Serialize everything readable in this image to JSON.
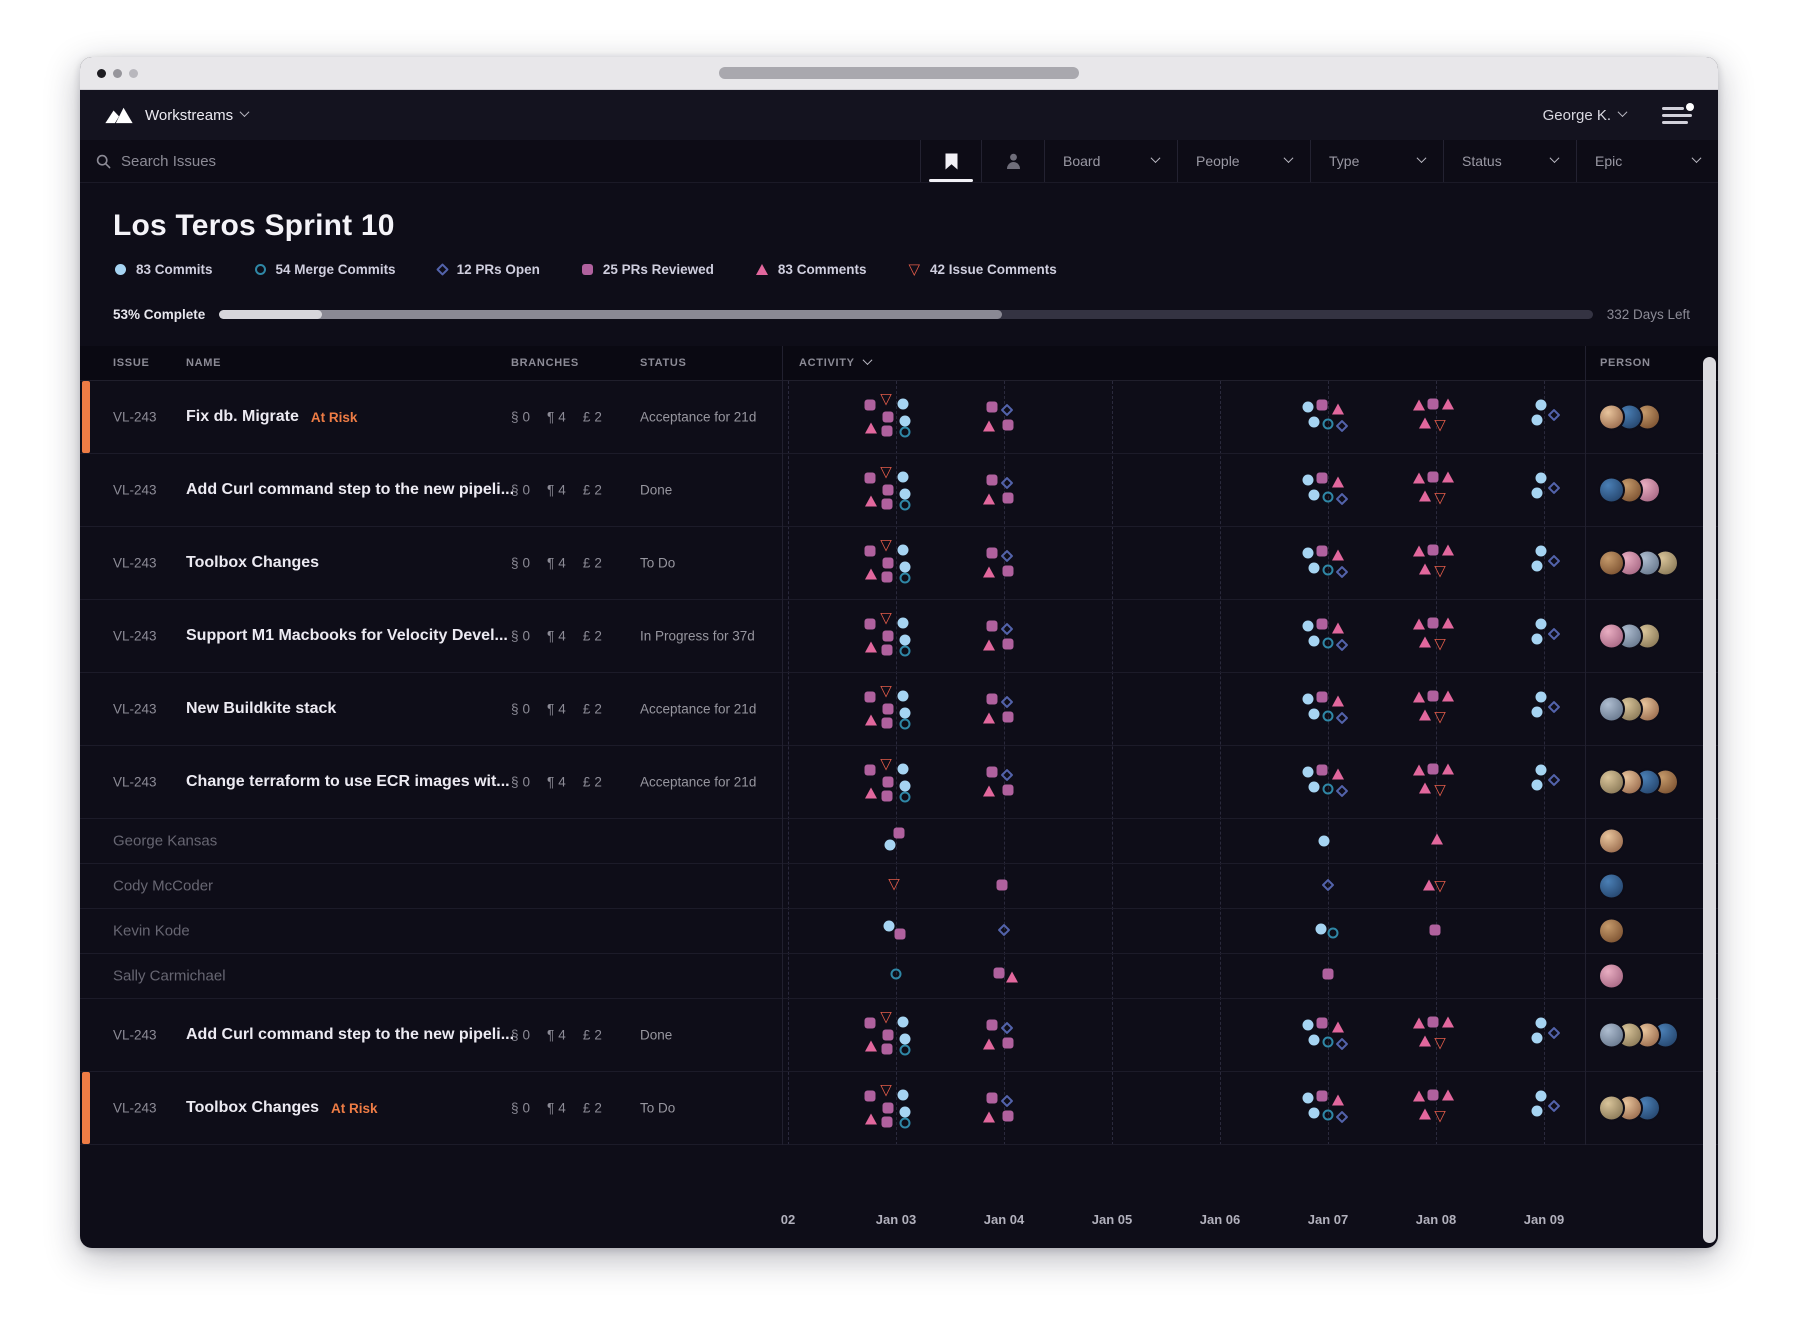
{
  "window": {
    "controls": [
      "close",
      "minimize",
      "zoom"
    ]
  },
  "nav": {
    "app_menu_label": "Workstreams",
    "user_label": "George K."
  },
  "filters": {
    "search_placeholder": "Search Issues",
    "tabs": [
      "bookmark",
      "person"
    ],
    "dropdowns": [
      "Board",
      "People",
      "Type",
      "Status",
      "Epic"
    ]
  },
  "sprint": {
    "title": "Los Teros Sprint 10",
    "progress_label": "53% Complete",
    "days_left_label": "332 Days Left",
    "progress": {
      "pct_light": 7.5,
      "pct_medium": 57
    },
    "legend": [
      {
        "marker": "c",
        "label": "83 Commits"
      },
      {
        "marker": "co",
        "label": "54 Merge Commits"
      },
      {
        "marker": "d",
        "label": "12 PRs Open"
      },
      {
        "marker": "sq",
        "label": "25 PRs Reviewed"
      },
      {
        "marker": "t",
        "label": "83 Comments"
      },
      {
        "marker": "td",
        "label": "42 Issue Comments"
      }
    ]
  },
  "table": {
    "headers": {
      "issue": "ISSUE",
      "name": "NAME",
      "branches": "BRANCHES",
      "status": "STATUS",
      "activity": "ACTIVITY",
      "person": "PERSON"
    },
    "branch_stats": [
      {
        "glyph": "§",
        "value": "0"
      },
      {
        "glyph": "¶",
        "value": "4"
      },
      {
        "glyph": "£",
        "value": "2"
      }
    ],
    "rows": [
      {
        "kind": "issue",
        "id": "VL-243",
        "name": "Fix db. Migrate",
        "at_risk": true,
        "status": "Acceptance for 21d",
        "avatars": 3,
        "pattern": "issue"
      },
      {
        "kind": "issue",
        "id": "VL-243",
        "name": "Add Curl command step to the new pipeli...",
        "at_risk": false,
        "status": "Done",
        "avatars": 3,
        "pattern": "issue"
      },
      {
        "kind": "issue",
        "id": "VL-243",
        "name": "Toolbox Changes",
        "at_risk": false,
        "status": "To Do",
        "avatars": 4,
        "pattern": "issue"
      },
      {
        "kind": "issue",
        "id": "VL-243",
        "name": "Support M1 Macbooks for Velocity Devel...",
        "at_risk": false,
        "status": "In Progress for 37d",
        "avatars": 3,
        "pattern": "issue"
      },
      {
        "kind": "issue",
        "id": "VL-243",
        "name": "New Buildkite stack",
        "at_risk": false,
        "status": "Acceptance for 21d",
        "avatars": 3,
        "pattern": "issue"
      },
      {
        "kind": "issue",
        "id": "VL-243",
        "name": "Change terraform to use ECR images wit...",
        "at_risk": false,
        "status": "Acceptance for 21d",
        "avatars": 4,
        "pattern": "issue"
      },
      {
        "kind": "person",
        "name": "George Kansas",
        "avatars": 1,
        "pattern": "george"
      },
      {
        "kind": "person",
        "name": "Cody McCoder",
        "avatars": 1,
        "pattern": "cody"
      },
      {
        "kind": "person",
        "name": "Kevin Kode",
        "avatars": 1,
        "pattern": "kevin"
      },
      {
        "kind": "person",
        "name": "Sally Carmichael",
        "avatars": 1,
        "pattern": "sally"
      },
      {
        "kind": "issue",
        "id": "VL-243",
        "name": "Add Curl command step to the new pipeli...",
        "at_risk": false,
        "status": "Done",
        "avatars": 4,
        "pattern": "issue"
      },
      {
        "kind": "issue",
        "id": "VL-243",
        "name": "Toolbox Changes",
        "at_risk": true,
        "status": "To Do",
        "avatars": 3,
        "pattern": "issue"
      }
    ]
  },
  "timeline": {
    "dates": [
      "02",
      "Jan 03",
      "Jan 04",
      "Jan 05",
      "Jan 06",
      "Jan 07",
      "Jan 08",
      "Jan 09"
    ]
  },
  "activity_patterns": {
    "issue": [
      {
        "col": 1,
        "markers": [
          [
            "sq",
            -26,
            -13
          ],
          [
            "td",
            -10,
            -19
          ],
          [
            "c",
            7,
            -14
          ],
          [
            "sq",
            -8,
            -1
          ],
          [
            "c",
            9,
            3
          ],
          [
            "t",
            -25,
            10
          ],
          [
            "sq",
            -9,
            13
          ],
          [
            "co",
            9,
            14
          ]
        ]
      },
      {
        "col": 2,
        "markers": [
          [
            "sq",
            -12,
            -11
          ],
          [
            "d",
            3,
            -8
          ],
          [
            "t",
            -15,
            8
          ],
          [
            "sq",
            4,
            7
          ]
        ]
      },
      {
        "col": 5,
        "markers": [
          [
            "c",
            -20,
            -11
          ],
          [
            "sq",
            -6,
            -13
          ],
          [
            "t",
            10,
            -9
          ],
          [
            "c",
            -14,
            4
          ],
          [
            "co",
            0,
            6
          ],
          [
            "d",
            14,
            8
          ]
        ]
      },
      {
        "col": 6,
        "markers": [
          [
            "t",
            -17,
            -13
          ],
          [
            "sq",
            -3,
            -14
          ],
          [
            "t",
            12,
            -14
          ],
          [
            "t",
            -11,
            5
          ],
          [
            "td",
            4,
            7
          ]
        ]
      },
      {
        "col": 7,
        "markers": [
          [
            "c",
            -3,
            -13
          ],
          [
            "d",
            10,
            -3
          ],
          [
            "c",
            -7,
            2
          ]
        ]
      }
    ],
    "george": [
      {
        "col": 1,
        "markers": [
          [
            "sq",
            3,
            -9
          ],
          [
            "c",
            -6,
            3
          ]
        ]
      },
      {
        "col": 5,
        "markers": [
          [
            "c",
            -4,
            -1
          ]
        ]
      },
      {
        "col": 6,
        "markers": [
          [
            "t",
            1,
            -3
          ]
        ]
      }
    ],
    "cody": [
      {
        "col": 1,
        "markers": [
          [
            "td",
            -2,
            -3
          ]
        ]
      },
      {
        "col": 2,
        "markers": [
          [
            "sq",
            -2,
            -2
          ]
        ]
      },
      {
        "col": 5,
        "markers": [
          [
            "d",
            0,
            -2
          ]
        ]
      },
      {
        "col": 6,
        "markers": [
          [
            "t",
            -7,
            -2
          ],
          [
            "td",
            4,
            -1
          ]
        ]
      }
    ],
    "kevin": [
      {
        "col": 1,
        "markers": [
          [
            "c",
            -7,
            -6
          ],
          [
            "sq",
            4,
            2
          ]
        ]
      },
      {
        "col": 2,
        "markers": [
          [
            "d",
            0,
            -2
          ]
        ]
      },
      {
        "col": 5,
        "markers": [
          [
            "c",
            -7,
            -3
          ],
          [
            "co",
            5,
            1
          ]
        ]
      },
      {
        "col": 6,
        "markers": [
          [
            "sq",
            -1,
            -2
          ]
        ]
      }
    ],
    "sally": [
      {
        "col": 1,
        "markers": [
          [
            "co",
            0,
            -3
          ]
        ]
      },
      {
        "col": 2,
        "markers": [
          [
            "sq",
            -5,
            -4
          ],
          [
            "t",
            8,
            0
          ]
        ]
      },
      {
        "col": 5,
        "markers": [
          [
            "sq",
            0,
            -3
          ]
        ]
      }
    ]
  },
  "icons": {
    "issue_comment_glyph": "▽"
  },
  "colors": {
    "accent": "#ee7c45",
    "commit": "#a6d4f2",
    "merge": "#2f87a6",
    "pr_open": "#5363ab",
    "pr_reviewed": "#b0619e",
    "comment": "#e2679d",
    "issue_comment": "#e15b49",
    "avatars": [
      [
        "#e8c49c",
        "#8a5a3e"
      ],
      [
        "#4a7fb5",
        "#1e3a5f"
      ],
      [
        "#c59a6b",
        "#6e4426"
      ],
      [
        "#e9aec2",
        "#9a5a78"
      ],
      [
        "#aebdd0",
        "#5a6a80"
      ],
      [
        "#d9c49a",
        "#7a6a4a"
      ]
    ]
  }
}
